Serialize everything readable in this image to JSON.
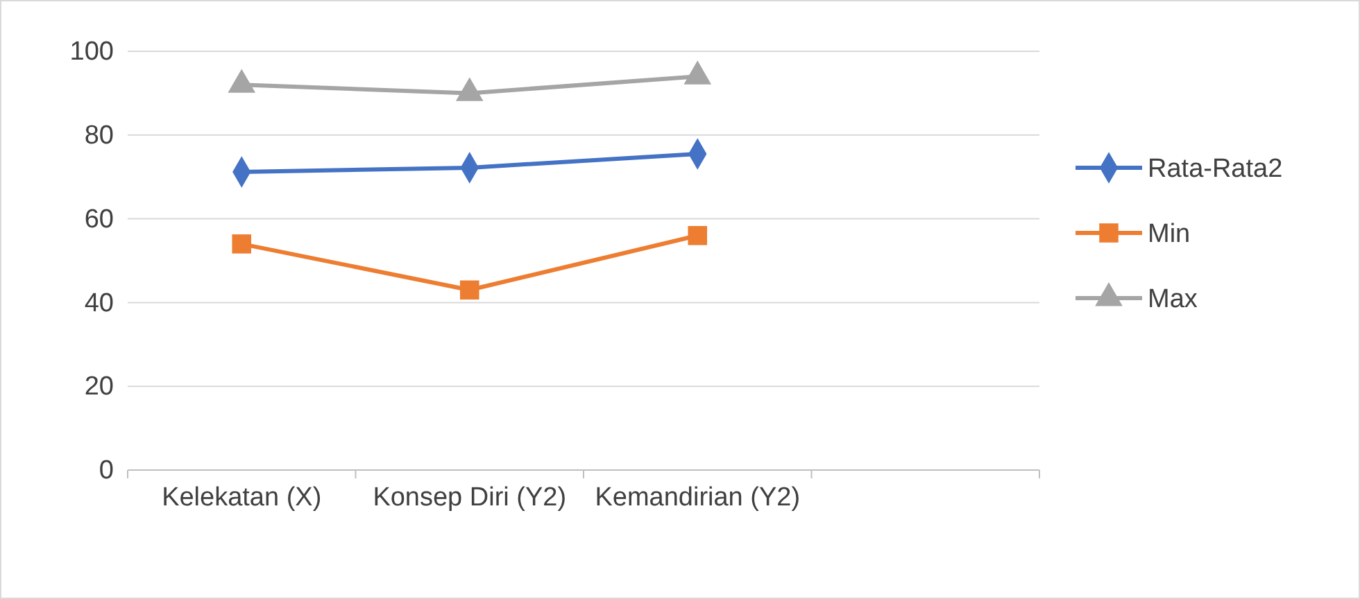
{
  "chart_data": {
    "type": "line",
    "categories": [
      "Kelekatan (X)",
      "Konsep Diri (Y2)",
      "Kemandirian (Y2)",
      null
    ],
    "series": [
      {
        "name": "Rata-Rata2",
        "color": "#4472c4",
        "marker": "diamond",
        "values": [
          71.2,
          72.2,
          75.5,
          null
        ]
      },
      {
        "name": "Min",
        "color": "#ed7d31",
        "marker": "square",
        "values": [
          54,
          43,
          56,
          null
        ]
      },
      {
        "name": "Max",
        "color": "#a5a5a5",
        "marker": "triangle",
        "values": [
          92,
          90,
          94,
          null
        ]
      }
    ],
    "ylim": [
      0,
      100
    ],
    "yticks": [
      0,
      20,
      40,
      60,
      80,
      100
    ],
    "grid": "y",
    "legend": "right",
    "line_style": "solid"
  }
}
